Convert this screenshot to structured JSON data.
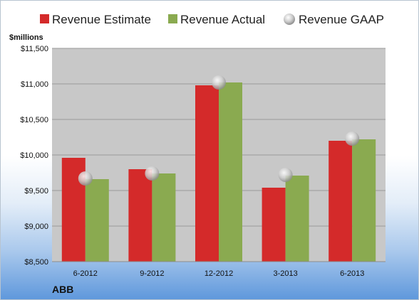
{
  "company": "ABB",
  "colors": {
    "estimate": "#d42a2a",
    "actual": "#8aaa50",
    "gaap": "#c8c8c8",
    "plot_bg": "#c8c8c8"
  },
  "chart_data": {
    "type": "bar",
    "ylabel": "$millions",
    "categories": [
      "6-2012",
      "9-2012",
      "12-2012",
      "3-2013",
      "6-2013"
    ],
    "series": [
      {
        "name": "Revenue Estimate",
        "type": "bar",
        "values": [
          9960,
          9800,
          10980,
          9540,
          10200
        ]
      },
      {
        "name": "Revenue Actual",
        "type": "bar",
        "values": [
          9660,
          9740,
          11020,
          9710,
          10220
        ]
      },
      {
        "name": "Revenue GAAP",
        "type": "scatter",
        "values": [
          9670,
          9740,
          11020,
          9720,
          10230
        ]
      }
    ],
    "ylim": [
      8500,
      11500
    ],
    "yticks": [
      8500,
      9000,
      9500,
      10000,
      10500,
      11000,
      11500
    ],
    "ytick_labels": [
      "$8,500",
      "$9,000",
      "$9,500",
      "$10,000",
      "$10,500",
      "$11,000",
      "$11,500"
    ],
    "grid": true,
    "legend": "top"
  }
}
